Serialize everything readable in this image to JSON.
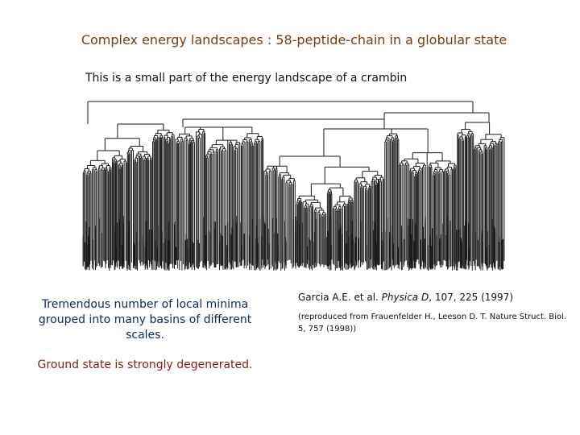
{
  "slide": {
    "title": "Complex energy landscapes : 58-peptide-chain in a globular state",
    "subtitle": "This is a small part of the energy landscape of a crambin",
    "left_note": "Tremendous number of local minima grouped into many basins of different scales.",
    "ground_state": "Ground state is strongly degenerated.",
    "citation": {
      "authors": "Garcia A.E. et al. ",
      "journal": "Physica D",
      "details": ", 107, 225 (1997)"
    },
    "reproduced_from": "(reproduced from Frauenfelder H., Leeson D. T. Nature Struct. Biol. 5, 757 (1998))"
  },
  "colors": {
    "title": "#7a3a0c",
    "left_note": "#0f2a5a",
    "ground_state": "#8b1a12",
    "tree": "#1a1a1a"
  },
  "figure": {
    "type": "disconnectivity-graph",
    "name": "energy-landscape-tree"
  }
}
